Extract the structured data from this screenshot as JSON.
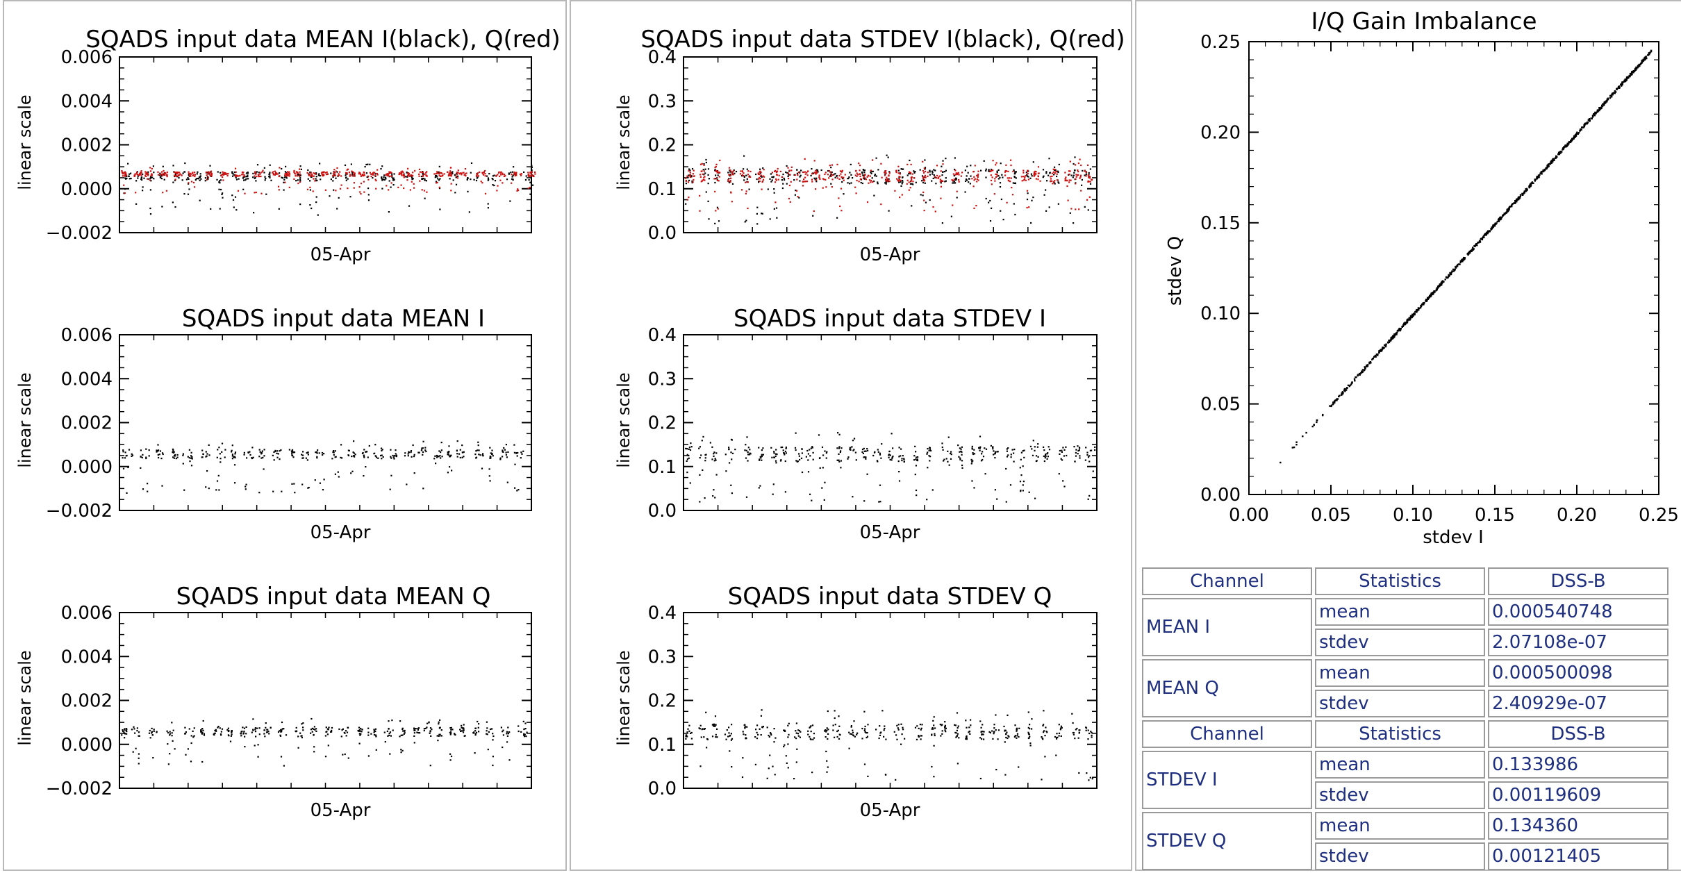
{
  "colors": {
    "series_i": "#000000",
    "series_q": "#cc1111",
    "frame_border": "#b8b8b8",
    "table_text": "#1f2f80"
  },
  "common": {
    "ylabel": "linear scale",
    "xlabel": "05-Apr"
  },
  "chart_data": [
    {
      "id": "mean_iq",
      "type": "scatter",
      "title": "SQADS input data MEAN I(black), Q(red)",
      "ylabel": "linear scale",
      "xlabel": "05-Apr",
      "ylim": [
        -0.002,
        0.006
      ],
      "yticks": [
        "0.006",
        "0.004",
        "0.002",
        "0.000",
        "−0.002"
      ],
      "series": [
        {
          "name": "I",
          "color": "#000000",
          "center": 0.0006,
          "spread": 0.0012,
          "dip": -0.0012
        },
        {
          "name": "Q",
          "color": "#cc1111",
          "center": 0.0007,
          "spread": 0.0006,
          "dip": -0.0002
        }
      ]
    },
    {
      "id": "stdev_iq",
      "type": "scatter",
      "title": "SQADS input data STDEV I(black), Q(red)",
      "ylabel": "linear scale",
      "xlabel": "05-Apr",
      "ylim": [
        0.0,
        0.4
      ],
      "yticks": [
        "0.4",
        "0.3",
        "0.2",
        "0.1",
        "0.0"
      ],
      "series": [
        {
          "name": "I",
          "color": "#000000",
          "center": 0.13,
          "spread": 0.1,
          "dip": 0.02
        },
        {
          "name": "Q",
          "color": "#cc1111",
          "center": 0.13,
          "spread": 0.08,
          "dip": 0.05
        }
      ]
    },
    {
      "id": "mean_i",
      "type": "scatter",
      "title": "SQADS input data MEAN I",
      "ylabel": "linear scale",
      "xlabel": "05-Apr",
      "ylim": [
        -0.002,
        0.006
      ],
      "yticks": [
        "0.006",
        "0.004",
        "0.002",
        "0.000",
        "−0.002"
      ],
      "series": [
        {
          "name": "I",
          "color": "#000000",
          "center": 0.0006,
          "spread": 0.0012,
          "dip": -0.0012
        }
      ]
    },
    {
      "id": "stdev_i",
      "type": "scatter",
      "title": "SQADS input data STDEV I",
      "ylabel": "linear scale",
      "xlabel": "05-Apr",
      "ylim": [
        0.0,
        0.4
      ],
      "yticks": [
        "0.4",
        "0.3",
        "0.2",
        "0.1",
        "0.0"
      ],
      "series": [
        {
          "name": "I",
          "color": "#000000",
          "center": 0.13,
          "spread": 0.1,
          "dip": 0.02
        }
      ]
    },
    {
      "id": "mean_q",
      "type": "scatter",
      "title": "SQADS input data MEAN Q",
      "ylabel": "linear scale",
      "xlabel": "05-Apr",
      "ylim": [
        -0.002,
        0.006
      ],
      "yticks": [
        "0.006",
        "0.004",
        "0.002",
        "0.000",
        "−0.002"
      ],
      "series": [
        {
          "name": "Q",
          "color": "#000000",
          "center": 0.0006,
          "spread": 0.0012,
          "dip": -0.001
        }
      ]
    },
    {
      "id": "stdev_q",
      "type": "scatter",
      "title": "SQADS input data STDEV Q",
      "ylabel": "linear scale",
      "xlabel": "05-Apr",
      "ylim": [
        0.0,
        0.4
      ],
      "yticks": [
        "0.4",
        "0.3",
        "0.2",
        "0.1",
        "0.0"
      ],
      "series": [
        {
          "name": "Q",
          "color": "#000000",
          "center": 0.13,
          "spread": 0.1,
          "dip": 0.02
        }
      ]
    },
    {
      "id": "gain_imbalance",
      "type": "scatter",
      "title": "I/Q Gain Imbalance",
      "xlabel": "stdev I",
      "ylabel": "stdev Q",
      "xlim": [
        0.0,
        0.25
      ],
      "ylim": [
        0.0,
        0.25
      ],
      "xticks": [
        "0.00",
        "0.05",
        "0.10",
        "0.15",
        "0.20",
        "0.25"
      ],
      "yticks": [
        "0.25",
        "0.20",
        "0.15",
        "0.10",
        "0.05",
        "0.00"
      ],
      "x_range": [
        0.015,
        0.245
      ],
      "slope": 1.0
    }
  ],
  "stats_table": {
    "header": [
      "Channel",
      "Statistics",
      "DSS-B"
    ],
    "groups": [
      {
        "channel": "MEAN I",
        "rows": [
          {
            "stat": "mean",
            "value": "0.000540748"
          },
          {
            "stat": "stdev",
            "value": "2.07108e-07"
          }
        ]
      },
      {
        "channel": "MEAN Q",
        "rows": [
          {
            "stat": "mean",
            "value": "0.000500098"
          },
          {
            "stat": "stdev",
            "value": "2.40929e-07"
          }
        ]
      },
      {
        "channel": "STDEV I",
        "rows": [
          {
            "stat": "mean",
            "value": "0.133986"
          },
          {
            "stat": "stdev",
            "value": "0.00119609"
          }
        ]
      },
      {
        "channel": "STDEV Q",
        "rows": [
          {
            "stat": "mean",
            "value": "0.134360"
          },
          {
            "stat": "stdev",
            "value": "0.00121405"
          }
        ]
      }
    ]
  }
}
